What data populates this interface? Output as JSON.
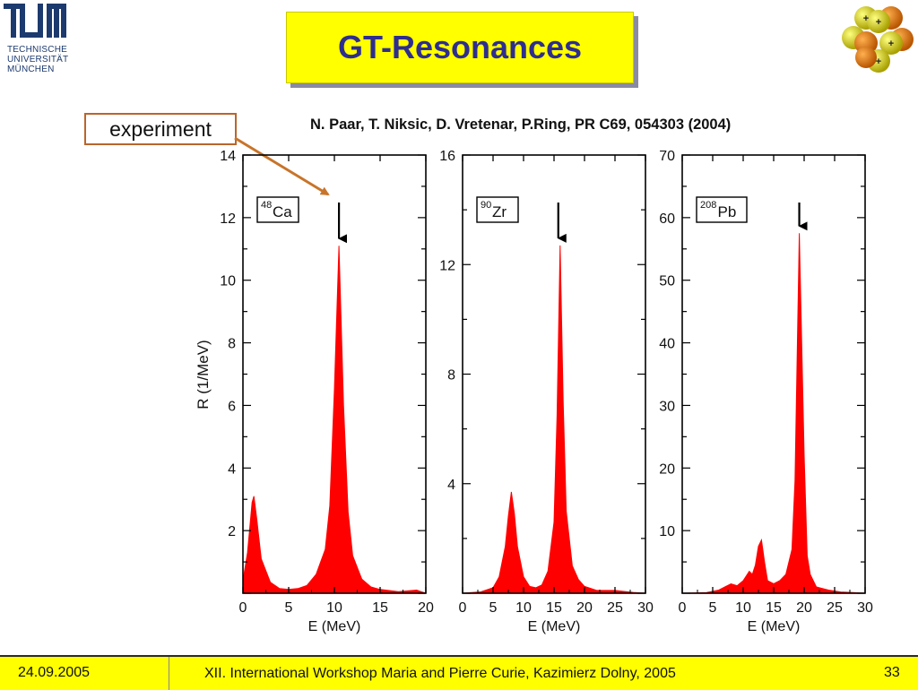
{
  "header": {
    "logo_mark": "TUM",
    "logo_lines": [
      "TECHNISCHE",
      "UNIVERSITÄT",
      "MÜNCHEN"
    ],
    "title": "GT-Resonances"
  },
  "annotation": {
    "experiment_label": "experiment",
    "arrow_target": "48Ca peak"
  },
  "citation": "N. Paar, T. Niksic, D. Vretenar, P.Ring, PR C69, 054303 (2004)",
  "footer": {
    "date": "24.09.2005",
    "event": "XII. International Workshop Maria and Pierre Curie, Kazimierz Dolny, 2005",
    "page": "33"
  },
  "colors": {
    "title_bg": "#ffff00",
    "title_text": "#2e2e8f",
    "curve_fill": "#ff0000",
    "arrow_annotation": "#c8742a",
    "footer_bg": "#ffff00"
  },
  "icons": [
    "tum-logo-icon",
    "nucleus-icon"
  ],
  "chart_data": [
    {
      "type": "area",
      "nucleus_mass": "48",
      "nucleus_symbol": "Ca",
      "xlabel": "E (MeV)",
      "ylabel": "R (1/MeV)",
      "xlim": [
        0,
        20
      ],
      "ylim": [
        0,
        14
      ],
      "xticks": [
        0,
        5,
        10,
        15,
        20
      ],
      "yticks": [
        2,
        4,
        6,
        8,
        10,
        12,
        14
      ],
      "experiment_arrow_x": 10.5,
      "peaks": [
        {
          "E": 1.2,
          "R": 3.1
        },
        {
          "E": 10.5,
          "R": 11.1
        }
      ],
      "x": [
        0,
        0.5,
        1.0,
        1.2,
        1.5,
        2.0,
        3.0,
        4.0,
        5.0,
        6.0,
        7.0,
        8.0,
        9.0,
        9.5,
        10.0,
        10.5,
        11.0,
        11.5,
        12.0,
        13.0,
        14.0,
        15.0,
        17.0,
        19.0,
        19.5,
        20.0
      ],
      "y": [
        0.4,
        1.3,
        2.9,
        3.1,
        2.4,
        1.1,
        0.35,
        0.15,
        0.12,
        0.15,
        0.25,
        0.6,
        1.4,
        2.8,
        6.5,
        11.1,
        6.0,
        2.6,
        1.2,
        0.45,
        0.2,
        0.12,
        0.05,
        0.1,
        0.05,
        0
      ]
    },
    {
      "type": "area",
      "nucleus_mass": "90",
      "nucleus_symbol": "Zr",
      "xlabel": "E (MeV)",
      "ylabel": "",
      "xlim": [
        0,
        30
      ],
      "ylim": [
        0,
        16
      ],
      "xticks": [
        0,
        5,
        10,
        15,
        20,
        25,
        30
      ],
      "yticks": [
        4,
        8,
        12,
        16
      ],
      "experiment_arrow_x": 15.7,
      "peaks": [
        {
          "E": 8.0,
          "R": 3.7
        },
        {
          "E": 16.0,
          "R": 12.7
        }
      ],
      "x": [
        0,
        3,
        5,
        6,
        7,
        7.5,
        8.0,
        8.5,
        9.0,
        10,
        11,
        12,
        13,
        14,
        15,
        15.5,
        16.0,
        16.5,
        17,
        18,
        19,
        20,
        22,
        25,
        28,
        30
      ],
      "y": [
        0,
        0.05,
        0.2,
        0.6,
        1.7,
        2.8,
        3.7,
        2.9,
        1.7,
        0.6,
        0.25,
        0.2,
        0.3,
        0.8,
        2.6,
        6.5,
        12.7,
        7.0,
        3.0,
        1.0,
        0.5,
        0.25,
        0.1,
        0.1,
        0.03,
        0
      ]
    },
    {
      "type": "area",
      "nucleus_mass": "208",
      "nucleus_symbol": "Pb",
      "xlabel": "E (MeV)",
      "ylabel": "",
      "xlim": [
        0,
        30
      ],
      "ylim": [
        0,
        70
      ],
      "xticks": [
        0,
        5,
        10,
        15,
        20,
        25,
        30
      ],
      "yticks": [
        10,
        20,
        30,
        40,
        50,
        60,
        70
      ],
      "experiment_arrow_x": 19.2,
      "peaks": [
        {
          "E": 12.9,
          "R": 8.5
        },
        {
          "E": 19.2,
          "R": 57.5
        }
      ],
      "x": [
        0,
        4,
        6,
        7,
        8,
        9,
        10,
        11,
        11.5,
        12,
        12.5,
        13,
        13.5,
        14,
        15,
        16,
        17,
        18,
        18.5,
        19.2,
        20,
        20.5,
        21,
        22,
        24,
        26,
        28,
        30
      ],
      "y": [
        0,
        0.1,
        0.5,
        1.0,
        1.5,
        1.2,
        2.0,
        3.5,
        3.0,
        4.5,
        7.5,
        8.5,
        5.0,
        2.0,
        1.5,
        2.0,
        3.0,
        7.0,
        18.0,
        57.5,
        22.0,
        6.0,
        3.0,
        1.0,
        0.5,
        0.2,
        0.1,
        0
      ]
    }
  ]
}
